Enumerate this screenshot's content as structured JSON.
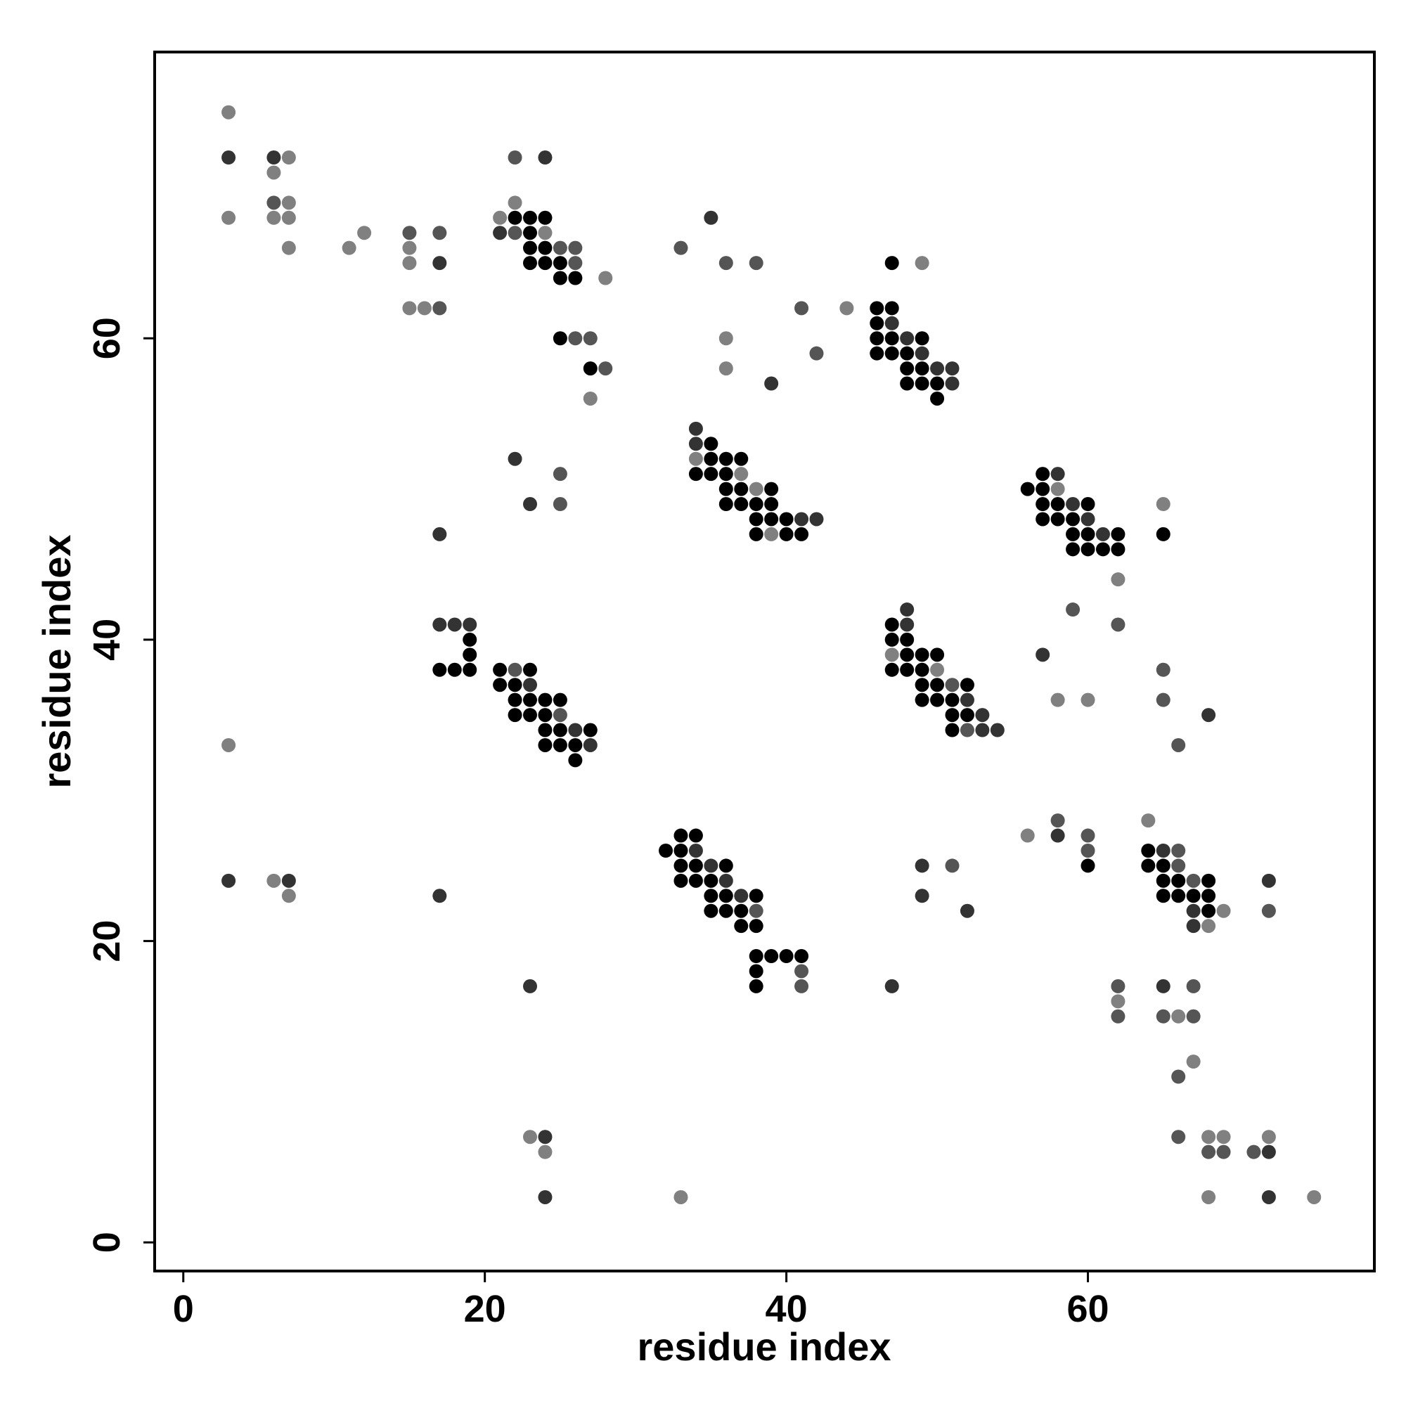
{
  "chart_data": {
    "type": "scatter",
    "x_label": "residue index",
    "y_label": "residue index",
    "xlim": [
      -1.9,
      79
    ],
    "ylim": [
      -1.9,
      79
    ],
    "xticks": [
      0,
      20,
      40,
      60
    ],
    "yticks": [
      0,
      20,
      40,
      60
    ],
    "series": [
      {
        "color": "#000000",
        "x": [
          22,
          23,
          24,
          23,
          23,
          24,
          23,
          24,
          25,
          25,
          26,
          25,
          27,
          47,
          46,
          47,
          46,
          46,
          47,
          49,
          46,
          47,
          48,
          48,
          49,
          48,
          49,
          50,
          50,
          35,
          35,
          36,
          37,
          34,
          35,
          36,
          36,
          37,
          39,
          36,
          37,
          38,
          39,
          38,
          39,
          40,
          38,
          40,
          41,
          56,
          57,
          57,
          57,
          58,
          60,
          57,
          58,
          59,
          59,
          60,
          62,
          59,
          60,
          61,
          62,
          65,
          19,
          19,
          17,
          18,
          19,
          21,
          23,
          21,
          22,
          22,
          23,
          24,
          25,
          22,
          23,
          24,
          24,
          25,
          27,
          24,
          25,
          26,
          26,
          47,
          47,
          48,
          48,
          49,
          50,
          47,
          48,
          49,
          49,
          50,
          52,
          49,
          50,
          51,
          51,
          52,
          51,
          32,
          33,
          34,
          33,
          33,
          34,
          36,
          33,
          34,
          35,
          35,
          36,
          38,
          35,
          36,
          37,
          37,
          38,
          38,
          39,
          40,
          41,
          38,
          38,
          60,
          64,
          64,
          65,
          65,
          66,
          68,
          65,
          66,
          67,
          68,
          68
        ],
        "y": [
          68,
          68,
          68,
          67,
          66,
          66,
          65,
          65,
          65,
          64,
          64,
          60,
          58,
          65,
          62,
          62,
          61,
          60,
          60,
          60,
          59,
          59,
          59,
          58,
          58,
          57,
          57,
          57,
          56,
          53,
          52,
          52,
          52,
          51,
          51,
          51,
          50,
          50,
          50,
          49,
          49,
          49,
          49,
          48,
          48,
          48,
          47,
          47,
          47,
          50,
          51,
          50,
          49,
          49,
          49,
          48,
          48,
          48,
          47,
          47,
          47,
          46,
          46,
          46,
          46,
          47,
          40,
          39,
          38,
          38,
          38,
          38,
          38,
          37,
          37,
          36,
          36,
          36,
          36,
          35,
          35,
          35,
          34,
          34,
          34,
          33,
          33,
          33,
          32,
          41,
          40,
          40,
          39,
          39,
          39,
          38,
          38,
          38,
          37,
          37,
          37,
          36,
          36,
          36,
          35,
          35,
          34,
          26,
          27,
          27,
          26,
          25,
          25,
          25,
          24,
          24,
          24,
          23,
          23,
          23,
          22,
          22,
          22,
          21,
          21,
          19,
          19,
          19,
          19,
          18,
          17,
          25,
          26,
          25,
          25,
          24,
          24,
          24,
          23,
          23,
          23,
          23,
          22
        ]
      },
      {
        "color": "#333333",
        "x": [
          3,
          6,
          17,
          24,
          21,
          35,
          39,
          47,
          48,
          49,
          50,
          51,
          51,
          34,
          34,
          41,
          42,
          22,
          23,
          17,
          58,
          59,
          60,
          61,
          57,
          68,
          17,
          18,
          19,
          23,
          26,
          27,
          48,
          48,
          52,
          53,
          53,
          54,
          3,
          7,
          17,
          34,
          35,
          36,
          37,
          23,
          58,
          49,
          49,
          52,
          47,
          65,
          67,
          67,
          72,
          65,
          24,
          24,
          72,
          72
        ],
        "y": [
          72,
          72,
          65,
          72,
          67,
          68,
          57,
          61,
          60,
          59,
          58,
          58,
          57,
          54,
          53,
          48,
          48,
          52,
          49,
          47,
          51,
          49,
          48,
          47,
          39,
          35,
          41,
          41,
          41,
          37,
          34,
          33,
          42,
          41,
          36,
          35,
          34,
          34,
          24,
          24,
          23,
          26,
          25,
          24,
          23,
          17,
          27,
          25,
          23,
          22,
          17,
          26,
          22,
          21,
          24,
          17,
          7,
          3,
          6,
          3
        ]
      },
      {
        "color": "#555555",
        "x": [
          6,
          15,
          17,
          17,
          22,
          22,
          25,
          26,
          26,
          26,
          27,
          28,
          33,
          36,
          38,
          41,
          42,
          25,
          25,
          59,
          62,
          65,
          65,
          66,
          22,
          25,
          51,
          52,
          38,
          41,
          41,
          58,
          60,
          60,
          51,
          66,
          66,
          67,
          72,
          62,
          62,
          65,
          67,
          67,
          66,
          66,
          68,
          69,
          71
        ],
        "y": [
          69,
          67,
          67,
          62,
          72,
          67,
          66,
          66,
          65,
          60,
          60,
          58,
          66,
          65,
          65,
          62,
          59,
          51,
          49,
          42,
          41,
          38,
          36,
          33,
          38,
          35,
          37,
          34,
          22,
          18,
          17,
          28,
          27,
          26,
          25,
          26,
          25,
          24,
          22,
          17,
          15,
          15,
          17,
          15,
          11,
          7,
          6,
          6,
          6
        ]
      },
      {
        "color": "#808080",
        "x": [
          3,
          3,
          7,
          6,
          7,
          6,
          7,
          7,
          11,
          12,
          15,
          15,
          15,
          16,
          22,
          21,
          24,
          28,
          27,
          36,
          36,
          44,
          49,
          34,
          37,
          38,
          39,
          58,
          65,
          62,
          58,
          60,
          47,
          50,
          3,
          6,
          7,
          56,
          64,
          69,
          68,
          62,
          66,
          67,
          23,
          24,
          33,
          68,
          69,
          72,
          68,
          75
        ],
        "y": [
          75,
          68,
          72,
          71,
          69,
          68,
          68,
          66,
          66,
          67,
          66,
          65,
          62,
          62,
          69,
          68,
          67,
          64,
          56,
          60,
          58,
          62,
          65,
          52,
          51,
          50,
          47,
          50,
          49,
          44,
          36,
          36,
          39,
          38,
          33,
          24,
          23,
          27,
          28,
          22,
          21,
          16,
          15,
          12,
          7,
          6,
          3,
          7,
          7,
          7,
          3,
          3
        ]
      }
    ]
  }
}
